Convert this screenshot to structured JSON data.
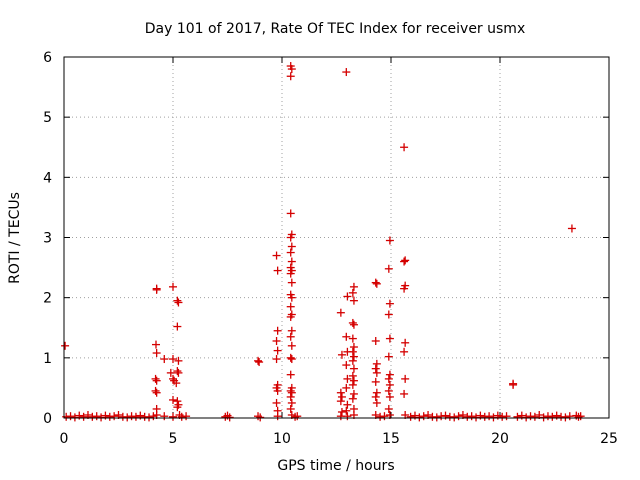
{
  "chart_data": {
    "type": "scatter",
    "title": "Day 101 of 2017, Rate Of TEC Index for receiver usmx",
    "xlabel": "GPS time / hours",
    "ylabel": "ROTI / TECUs",
    "xlim": [
      0,
      25
    ],
    "ylim": [
      0,
      6
    ],
    "xticks": [
      "0",
      "5",
      "10",
      "15",
      "20",
      "25"
    ],
    "yticks": [
      "0",
      "1",
      "2",
      "3",
      "4",
      "5",
      "6"
    ],
    "grid": true,
    "marker": "+",
    "color": "#d40000",
    "series": [
      {
        "name": "ROTI",
        "points": [
          [
            0.05,
            1.2
          ],
          [
            0.1,
            0.02
          ],
          [
            0.3,
            0.03
          ],
          [
            0.5,
            0.01
          ],
          [
            0.7,
            0.04
          ],
          [
            0.9,
            0.02
          ],
          [
            1.1,
            0.05
          ],
          [
            1.3,
            0.02
          ],
          [
            1.5,
            0.03
          ],
          [
            1.7,
            0.01
          ],
          [
            1.9,
            0.04
          ],
          [
            2.1,
            0.02
          ],
          [
            2.3,
            0.03
          ],
          [
            2.5,
            0.05
          ],
          [
            2.7,
            0.02
          ],
          [
            2.9,
            0.01
          ],
          [
            3.1,
            0.03
          ],
          [
            3.3,
            0.02
          ],
          [
            3.5,
            0.04
          ],
          [
            3.7,
            0.02
          ],
          [
            3.9,
            0.01
          ],
          [
            4.1,
            0.03
          ],
          [
            4.25,
            2.15
          ],
          [
            4.25,
            2.13
          ],
          [
            4.22,
            1.22
          ],
          [
            4.25,
            1.08
          ],
          [
            4.2,
            0.65
          ],
          [
            4.25,
            0.62
          ],
          [
            4.2,
            0.45
          ],
          [
            4.25,
            0.42
          ],
          [
            4.25,
            0.15
          ],
          [
            4.25,
            0.05
          ],
          [
            4.6,
            0.98
          ],
          [
            4.6,
            0.03
          ],
          [
            5.0,
            2.18
          ],
          [
            5.0,
            0.98
          ],
          [
            4.9,
            0.75
          ],
          [
            5.0,
            0.65
          ],
          [
            5.05,
            0.62
          ],
          [
            5.0,
            0.3
          ],
          [
            5.0,
            0.02
          ],
          [
            5.2,
            1.95
          ],
          [
            5.25,
            1.92
          ],
          [
            5.2,
            1.52
          ],
          [
            5.25,
            0.95
          ],
          [
            5.2,
            0.78
          ],
          [
            5.25,
            0.75
          ],
          [
            5.15,
            0.58
          ],
          [
            5.2,
            0.28
          ],
          [
            5.25,
            0.22
          ],
          [
            5.2,
            0.18
          ],
          [
            5.3,
            0.05
          ],
          [
            5.4,
            0.02
          ],
          [
            5.6,
            0.03
          ],
          [
            7.4,
            0.02
          ],
          [
            7.5,
            0.04
          ],
          [
            7.6,
            0.01
          ],
          [
            8.9,
            0.95
          ],
          [
            8.95,
            0.93
          ],
          [
            8.9,
            0.03
          ],
          [
            9.0,
            0.01
          ],
          [
            9.75,
            2.7
          ],
          [
            9.8,
            2.45
          ],
          [
            9.8,
            1.45
          ],
          [
            9.75,
            1.28
          ],
          [
            9.8,
            1.12
          ],
          [
            9.75,
            0.98
          ],
          [
            9.8,
            0.55
          ],
          [
            9.75,
            0.5
          ],
          [
            9.8,
            0.45
          ],
          [
            9.75,
            0.25
          ],
          [
            9.8,
            0.12
          ],
          [
            9.8,
            0.03
          ],
          [
            10.4,
            5.85
          ],
          [
            10.45,
            5.8
          ],
          [
            10.4,
            5.68
          ],
          [
            10.4,
            3.4
          ],
          [
            10.45,
            3.05
          ],
          [
            10.4,
            3.0
          ],
          [
            10.45,
            2.85
          ],
          [
            10.4,
            2.75
          ],
          [
            10.45,
            2.6
          ],
          [
            10.4,
            2.5
          ],
          [
            10.45,
            2.45
          ],
          [
            10.4,
            2.4
          ],
          [
            10.45,
            2.25
          ],
          [
            10.4,
            2.05
          ],
          [
            10.45,
            2.0
          ],
          [
            10.4,
            1.85
          ],
          [
            10.45,
            1.72
          ],
          [
            10.4,
            1.68
          ],
          [
            10.45,
            1.45
          ],
          [
            10.4,
            1.35
          ],
          [
            10.45,
            1.2
          ],
          [
            10.4,
            1.0
          ],
          [
            10.45,
            0.98
          ],
          [
            10.4,
            0.72
          ],
          [
            10.45,
            0.5
          ],
          [
            10.4,
            0.45
          ],
          [
            10.45,
            0.42
          ],
          [
            10.4,
            0.35
          ],
          [
            10.45,
            0.25
          ],
          [
            10.4,
            0.15
          ],
          [
            10.45,
            0.05
          ],
          [
            10.6,
            0.02
          ],
          [
            10.7,
            0.03
          ],
          [
            12.7,
            1.75
          ],
          [
            12.75,
            1.05
          ],
          [
            12.7,
            0.42
          ],
          [
            12.75,
            0.35
          ],
          [
            12.7,
            0.28
          ],
          [
            12.75,
            0.1
          ],
          [
            12.7,
            0.03
          ],
          [
            12.95,
            5.75
          ],
          [
            13.0,
            2.02
          ],
          [
            12.95,
            1.35
          ],
          [
            13.0,
            1.1
          ],
          [
            12.95,
            0.88
          ],
          [
            13.0,
            0.65
          ],
          [
            12.95,
            0.5
          ],
          [
            13.0,
            0.22
          ],
          [
            12.95,
            0.12
          ],
          [
            13.0,
            0.03
          ],
          [
            13.3,
            2.18
          ],
          [
            13.25,
            2.08
          ],
          [
            13.3,
            1.95
          ],
          [
            13.25,
            1.58
          ],
          [
            13.3,
            1.55
          ],
          [
            13.25,
            1.32
          ],
          [
            13.3,
            1.18
          ],
          [
            13.25,
            1.1
          ],
          [
            13.3,
            1.02
          ],
          [
            13.25,
            0.95
          ],
          [
            13.3,
            0.82
          ],
          [
            13.25,
            0.7
          ],
          [
            13.3,
            0.62
          ],
          [
            13.25,
            0.55
          ],
          [
            13.3,
            0.4
          ],
          [
            13.25,
            0.32
          ],
          [
            13.3,
            0.15
          ],
          [
            13.3,
            0.05
          ],
          [
            14.3,
            2.25
          ],
          [
            14.35,
            2.23
          ],
          [
            14.3,
            1.28
          ],
          [
            14.35,
            0.9
          ],
          [
            14.3,
            0.82
          ],
          [
            14.35,
            0.75
          ],
          [
            14.3,
            0.6
          ],
          [
            14.35,
            0.42
          ],
          [
            14.3,
            0.35
          ],
          [
            14.35,
            0.25
          ],
          [
            14.3,
            0.05
          ],
          [
            14.5,
            0.02
          ],
          [
            14.7,
            0.03
          ],
          [
            14.95,
            2.95
          ],
          [
            14.9,
            2.48
          ],
          [
            14.95,
            1.9
          ],
          [
            14.9,
            1.72
          ],
          [
            14.95,
            1.32
          ],
          [
            14.9,
            1.02
          ],
          [
            14.95,
            0.72
          ],
          [
            14.9,
            0.65
          ],
          [
            14.95,
            0.55
          ],
          [
            14.9,
            0.45
          ],
          [
            14.95,
            0.35
          ],
          [
            14.9,
            0.15
          ],
          [
            14.95,
            0.05
          ],
          [
            15.6,
            4.5
          ],
          [
            15.65,
            2.62
          ],
          [
            15.6,
            2.6
          ],
          [
            15.65,
            2.2
          ],
          [
            15.6,
            2.15
          ],
          [
            15.65,
            1.25
          ],
          [
            15.6,
            1.1
          ],
          [
            15.65,
            0.65
          ],
          [
            15.6,
            0.4
          ],
          [
            15.65,
            0.05
          ],
          [
            15.9,
            0.02
          ],
          [
            16.1,
            0.04
          ],
          [
            16.3,
            0.01
          ],
          [
            16.5,
            0.03
          ],
          [
            16.7,
            0.05
          ],
          [
            16.9,
            0.02
          ],
          [
            17.1,
            0.01
          ],
          [
            17.3,
            0.03
          ],
          [
            17.5,
            0.04
          ],
          [
            17.7,
            0.02
          ],
          [
            17.9,
            0.01
          ],
          [
            18.1,
            0.03
          ],
          [
            18.3,
            0.05
          ],
          [
            18.5,
            0.02
          ],
          [
            18.7,
            0.03
          ],
          [
            18.9,
            0.01
          ],
          [
            19.1,
            0.04
          ],
          [
            19.3,
            0.02
          ],
          [
            19.5,
            0.03
          ],
          [
            19.7,
            0.01
          ],
          [
            19.9,
            0.04
          ],
          [
            20.1,
            0.02
          ],
          [
            20.3,
            0.03
          ],
          [
            20.6,
            0.57
          ],
          [
            20.6,
            0.55
          ],
          [
            20.8,
            0.02
          ],
          [
            21.0,
            0.04
          ],
          [
            21.2,
            0.01
          ],
          [
            21.4,
            0.03
          ],
          [
            21.6,
            0.02
          ],
          [
            21.8,
            0.05
          ],
          [
            22.0,
            0.01
          ],
          [
            22.2,
            0.03
          ],
          [
            22.4,
            0.02
          ],
          [
            22.6,
            0.04
          ],
          [
            22.8,
            0.02
          ],
          [
            23.0,
            0.01
          ],
          [
            23.2,
            0.03
          ],
          [
            23.3,
            3.15
          ],
          [
            23.5,
            0.04
          ],
          [
            23.6,
            0.02
          ],
          [
            23.7,
            0.03
          ]
        ]
      }
    ]
  }
}
